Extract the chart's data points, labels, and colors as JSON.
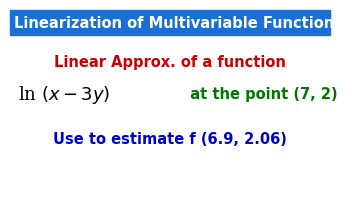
{
  "title": "Linearization of Multivariable Functions",
  "title_bg": "#1a6fd4",
  "title_color": "#FFFFFF",
  "line1": "Linear Approx. of a function",
  "line1_color": "#CC0000",
  "line2_math": "ln $(x - 3y)$",
  "line2_point": "  at the point (7, 2)",
  "line2_math_color": "#000000",
  "line2_point_color": "#007700",
  "line3": "Use to estimate f (6.9, 2.06)",
  "line3_color": "#0000CC",
  "bg_color": "#FFFFFF",
  "title_fontsize": 10.5,
  "line1_fontsize": 10.5,
  "line2_math_fontsize": 13.0,
  "line2_point_fontsize": 10.5,
  "line3_fontsize": 10.5
}
